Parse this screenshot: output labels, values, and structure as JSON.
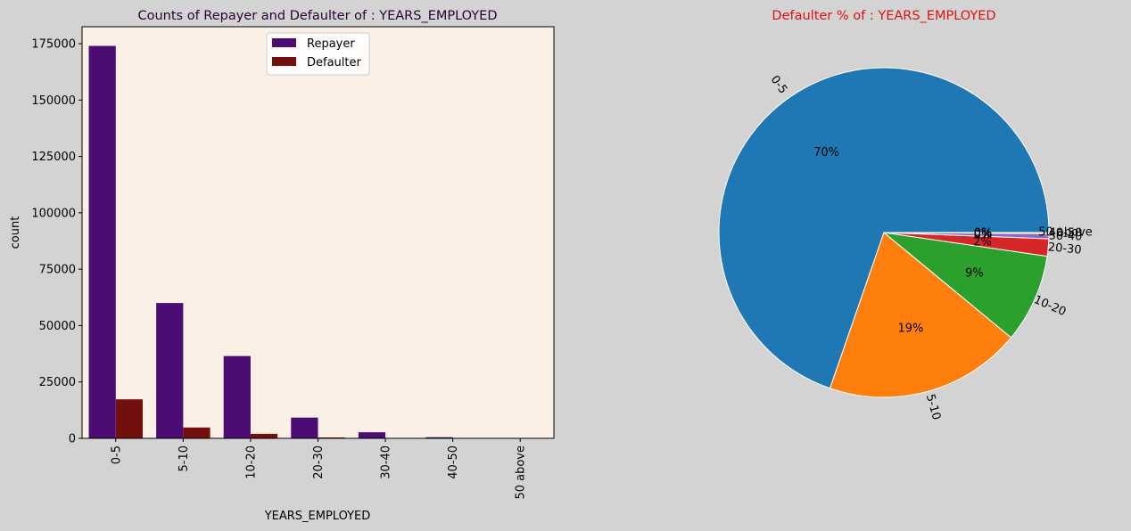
{
  "chart_data": [
    {
      "type": "bar",
      "title": "Counts of Repayer and Defaulter of : YEARS_EMPLOYED",
      "xlabel": "YEARS_EMPLOYED",
      "ylabel": "count",
      "categories": [
        "0-5",
        "5-10",
        "10-20",
        "20-30",
        "30-40",
        "40-50",
        "50 above"
      ],
      "series": [
        {
          "name": "Repayer",
          "color": "#4b0c74",
          "values": [
            174000,
            60000,
            36500,
            9200,
            2700,
            500,
            0
          ]
        },
        {
          "name": "Defaulter",
          "color": "#721010",
          "values": [
            17300,
            4800,
            2000,
            400,
            60,
            10,
            0
          ]
        }
      ],
      "ylim": [
        0,
        182500
      ],
      "yticks": [
        0,
        25000,
        50000,
        75000,
        100000,
        125000,
        150000,
        175000
      ],
      "legend": "top-center",
      "background": "#faf0e6",
      "title_color": "#2a0033"
    },
    {
      "type": "pie",
      "title": "Defaulter % of : YEARS_EMPLOYED",
      "title_color": "#dd1111",
      "labels": [
        "0-5",
        "5-10",
        "10-20",
        "20-30",
        "30-40",
        "40-50",
        "50 above"
      ],
      "values": [
        69.7,
        19.3,
        8.7,
        1.7,
        0.5,
        0.1,
        0.0
      ],
      "pct_labels": [
        "70%",
        "19%",
        "9%",
        "2%",
        "0%",
        "0%",
        "0%"
      ],
      "colors": [
        "#1f77b4",
        "#ff7f0e",
        "#2ca02c",
        "#d62728",
        "#9467bd",
        "#8c564b",
        "#e377c2"
      ]
    }
  ]
}
